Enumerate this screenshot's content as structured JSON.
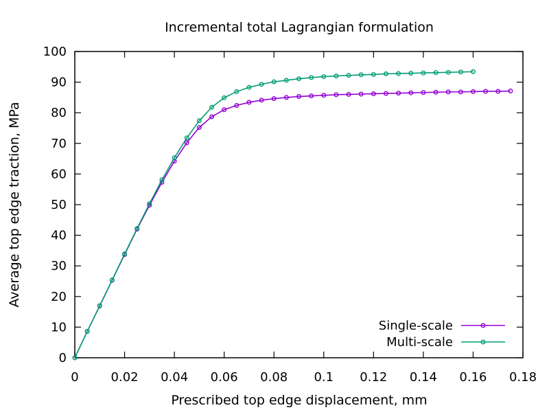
{
  "chart_data": {
    "type": "line",
    "title": "Incremental total Lagrangian formulation",
    "xlabel": "Prescribed top edge displacement, mm",
    "ylabel": "Average top edge traction, MPa",
    "xlim": [
      0,
      0.18
    ],
    "ylim": [
      0,
      100
    ],
    "xticks": [
      0,
      0.02,
      0.04,
      0.06,
      0.08,
      0.1,
      0.12,
      0.14,
      0.16,
      0.18
    ],
    "yticks": [
      0,
      10,
      20,
      30,
      40,
      50,
      60,
      70,
      80,
      90,
      100
    ],
    "xtick_labels": [
      "0",
      "0.02",
      "0.04",
      "0.06",
      "0.08",
      "0.1",
      "0.12",
      "0.14",
      "0.16",
      "0.18"
    ],
    "ytick_labels": [
      "0",
      "10",
      "20",
      "30",
      "40",
      "50",
      "60",
      "70",
      "80",
      "90",
      "100"
    ],
    "grid": false,
    "legend_position": "bottom-right",
    "series": [
      {
        "name": "Single-scale",
        "color": "#9400d3",
        "marker": "circle",
        "x": [
          0,
          0.005,
          0.01,
          0.015,
          0.02,
          0.025,
          0.03,
          0.035,
          0.04,
          0.045,
          0.05,
          0.055,
          0.06,
          0.065,
          0.07,
          0.075,
          0.08,
          0.085,
          0.09,
          0.095,
          0.1,
          0.105,
          0.11,
          0.115,
          0.12,
          0.125,
          0.13,
          0.135,
          0.14,
          0.145,
          0.15,
          0.155,
          0.16,
          0.165,
          0.17,
          0.175
        ],
        "y": [
          0,
          8.6,
          16.9,
          25.3,
          33.7,
          42.0,
          49.8,
          57.3,
          64.2,
          70.2,
          75.2,
          78.7,
          81.0,
          82.4,
          83.4,
          84.1,
          84.6,
          85.0,
          85.3,
          85.5,
          85.7,
          85.9,
          86.0,
          86.1,
          86.2,
          86.3,
          86.4,
          86.5,
          86.6,
          86.7,
          86.8,
          86.8,
          86.9,
          87.0,
          87.0,
          87.1
        ]
      },
      {
        "name": "Multi-scale",
        "color": "#009e73",
        "marker": "circle",
        "x": [
          0,
          0.005,
          0.01,
          0.015,
          0.02,
          0.025,
          0.03,
          0.035,
          0.04,
          0.045,
          0.05,
          0.055,
          0.06,
          0.065,
          0.07,
          0.075,
          0.08,
          0.085,
          0.09,
          0.095,
          0.1,
          0.105,
          0.11,
          0.115,
          0.12,
          0.125,
          0.13,
          0.135,
          0.14,
          0.145,
          0.15,
          0.155,
          0.16
        ],
        "y": [
          0,
          8.6,
          17.0,
          25.4,
          33.9,
          42.2,
          50.3,
          58.1,
          65.3,
          71.8,
          77.4,
          81.8,
          84.9,
          86.9,
          88.3,
          89.3,
          90.1,
          90.6,
          91.1,
          91.5,
          91.8,
          92.0,
          92.2,
          92.4,
          92.5,
          92.7,
          92.8,
          92.9,
          93.0,
          93.1,
          93.2,
          93.3,
          93.4
        ]
      }
    ]
  }
}
